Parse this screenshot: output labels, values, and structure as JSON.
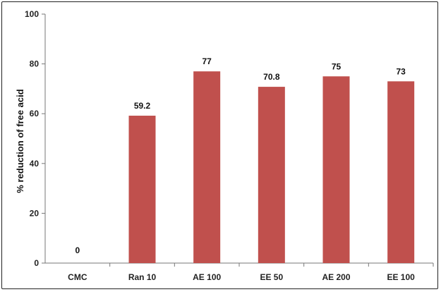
{
  "chart_data": {
    "type": "bar",
    "categories": [
      "CMC",
      "Ran 10",
      "AE 100",
      "EE 50",
      "AE 200",
      "EE 100"
    ],
    "values": [
      0,
      59.2,
      77,
      70.8,
      75,
      73
    ],
    "value_labels": [
      "0",
      "59.2",
      "77",
      "70.8",
      "75",
      "73"
    ],
    "ylabel": "% reduction of free acid",
    "xlabel": "",
    "ylim": [
      0,
      100
    ],
    "yticks": [
      "0",
      "20",
      "40",
      "60",
      "80",
      "100"
    ],
    "bar_color": "#c0504d",
    "grid": false
  }
}
